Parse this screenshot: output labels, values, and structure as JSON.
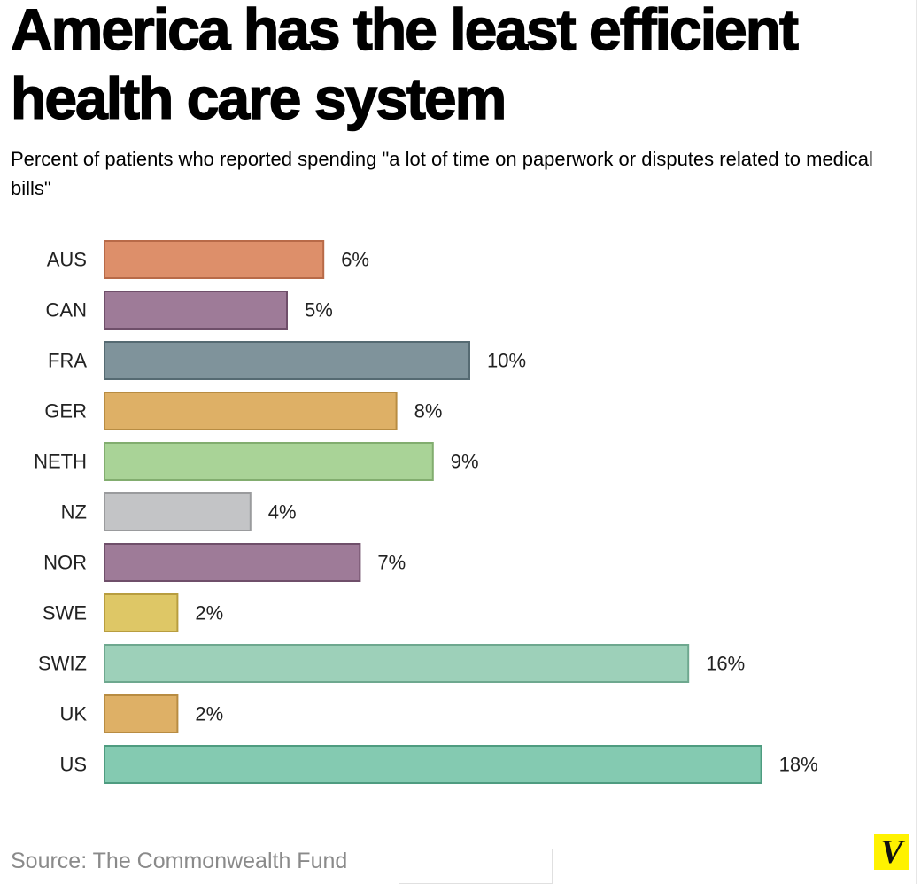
{
  "title": "America has the least efficient health care system",
  "subtitle": "Percent of patients who reported spending \"a lot of time on paperwork or disputes related to medical bills\"",
  "source": "Source: The Commonwealth Fund",
  "logo": "V",
  "colors": {
    "logo_bg": "#fff200",
    "text": "#000000",
    "source": "#8a8a8a"
  },
  "chart_data": {
    "type": "bar",
    "orientation": "horizontal",
    "title": "America has the least efficient health care system",
    "subtitle": "Percent of patients who reported spending \"a lot of time on paperwork or disputes related to medical bills\"",
    "categories": [
      "AUS",
      "CAN",
      "FRA",
      "GER",
      "NETH",
      "NZ",
      "NOR",
      "SWE",
      "SWIZ",
      "UK",
      "US"
    ],
    "values": [
      6,
      5,
      10,
      8,
      9,
      4,
      7,
      2,
      16,
      2,
      18
    ],
    "value_labels": [
      "6%",
      "5%",
      "10%",
      "8%",
      "9%",
      "4%",
      "7%",
      "2%",
      "16%",
      "2%",
      "18%"
    ],
    "unit": "%",
    "xlim": [
      0,
      18
    ],
    "grid": false,
    "legend": "none",
    "bar_colors": [
      "#dd8f6a",
      "#9e7b98",
      "#7f939b",
      "#deb066",
      "#a9d397",
      "#c3c4c6",
      "#9e7b98",
      "#dec766",
      "#9dd0b9",
      "#deb066",
      "#84cab1"
    ],
    "bar_borders": [
      "#b86a48",
      "#6f4f6a",
      "#556a72",
      "#b88c42",
      "#82ad6f",
      "#9a9b9d",
      "#6f4f6a",
      "#b89d3f",
      "#6ea88f",
      "#b88c42",
      "#4e9c80"
    ]
  }
}
